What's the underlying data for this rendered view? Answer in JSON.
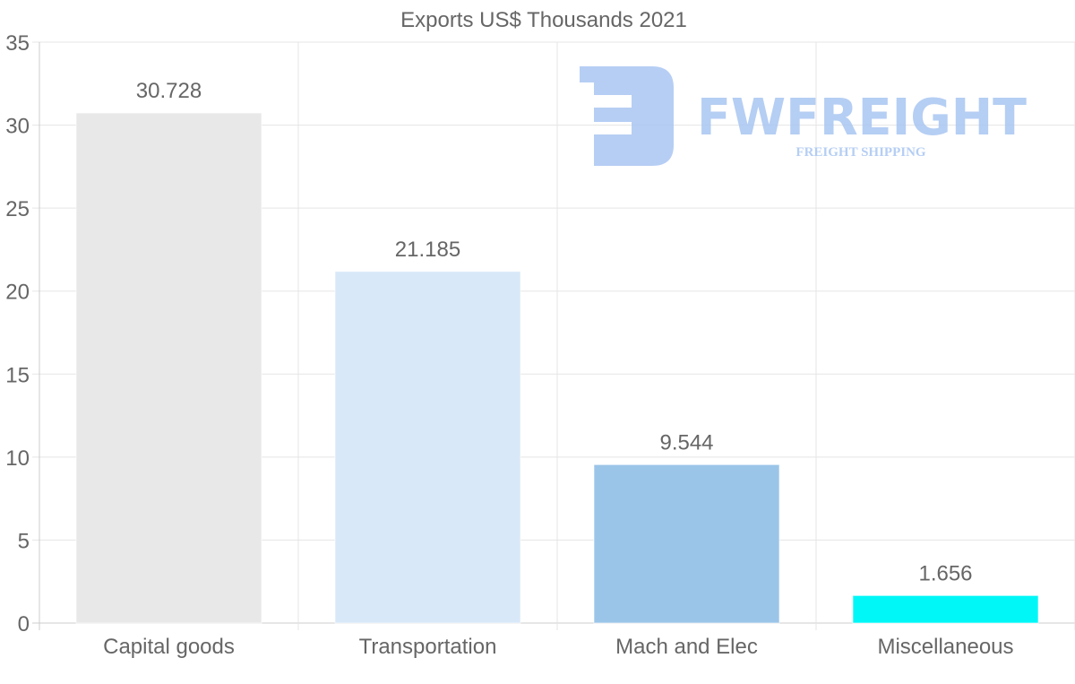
{
  "chart_data": {
    "type": "bar",
    "title": "Exports US$ Thousands 2021",
    "xlabel": "",
    "ylabel": "",
    "categories": [
      "Capital goods",
      "Transportation",
      "Mach and Elec",
      "Miscellaneous"
    ],
    "values": [
      30.728,
      21.185,
      9.544,
      1.656
    ],
    "value_labels": [
      "30.728",
      "21.185",
      "9.544",
      "1.656"
    ],
    "bar_colors": [
      "#e8e8e8",
      "#d8e8f9",
      "#9bc5e8",
      "#00f7f7"
    ],
    "ylim": [
      0,
      35
    ],
    "yticks": [
      0,
      5,
      10,
      15,
      20,
      25,
      30,
      35
    ],
    "grid": true,
    "legend": "none"
  },
  "watermark": {
    "brand": "FWFREIGHT",
    "tagline": "FREIGHT SHIPPING",
    "color": "#a9c6f2"
  }
}
